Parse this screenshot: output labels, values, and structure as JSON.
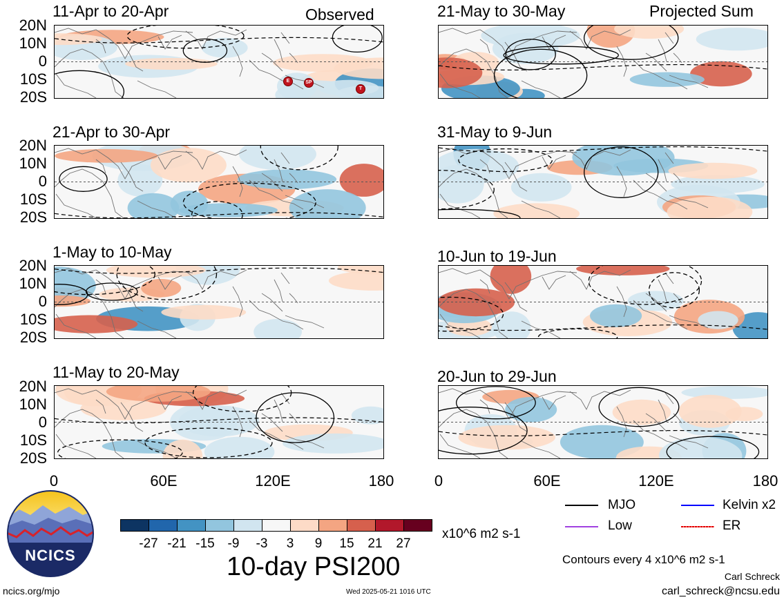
{
  "header": {
    "left_tag": "Observed",
    "right_tag": "Projected Sum"
  },
  "panels_observed": [
    {
      "title": "11-Apr to 20-Apr"
    },
    {
      "title": "21-Apr to 30-Apr"
    },
    {
      "title": "1-May to 10-May"
    },
    {
      "title": "11-May to 20-May"
    }
  ],
  "panels_projected": [
    {
      "title": "21-May to 30-May"
    },
    {
      "title": "31-May to 9-Jun"
    },
    {
      "title": "10-Jun to 19-Jun"
    },
    {
      "title": "20-Jun to 29-Jun"
    }
  ],
  "lat_labels": [
    "20N",
    "10N",
    "0",
    "10S",
    "20S"
  ],
  "lon_labels": [
    "0",
    "60E",
    "120E",
    "180"
  ],
  "storm_markers": [
    "E",
    "SP",
    "T"
  ],
  "colorbar": {
    "labels": [
      "-27",
      "-21",
      "-15",
      "-9",
      "-3",
      "3",
      "9",
      "15",
      "21",
      "27"
    ],
    "colors": [
      "#0d3462",
      "#2166ac",
      "#4393c3",
      "#92c5de",
      "#d1e5f0",
      "#f7f7f7",
      "#fddbc7",
      "#f4a582",
      "#d6604d",
      "#b2182b",
      "#67001f"
    ],
    "units": "x10^6 m2 s-1"
  },
  "legend": {
    "mjo": "MJO",
    "kelvin": "Kelvin x2",
    "low": "Low",
    "er": "ER",
    "colors": {
      "mjo": "#000000",
      "kelvin": "#0000ff",
      "low": "#a040e0",
      "er": "#e00000"
    }
  },
  "main_title": "10-day PSI200",
  "contour_note": "Contours every 4 x10^6 m2 s-1",
  "author": "Carl Schreck",
  "email": "carl_schreck@ncsu.edu",
  "site": "ncics.org/mjo",
  "timestamp": "Wed 2025-05-21 1016 UTC",
  "logo_text": "NCICS"
}
